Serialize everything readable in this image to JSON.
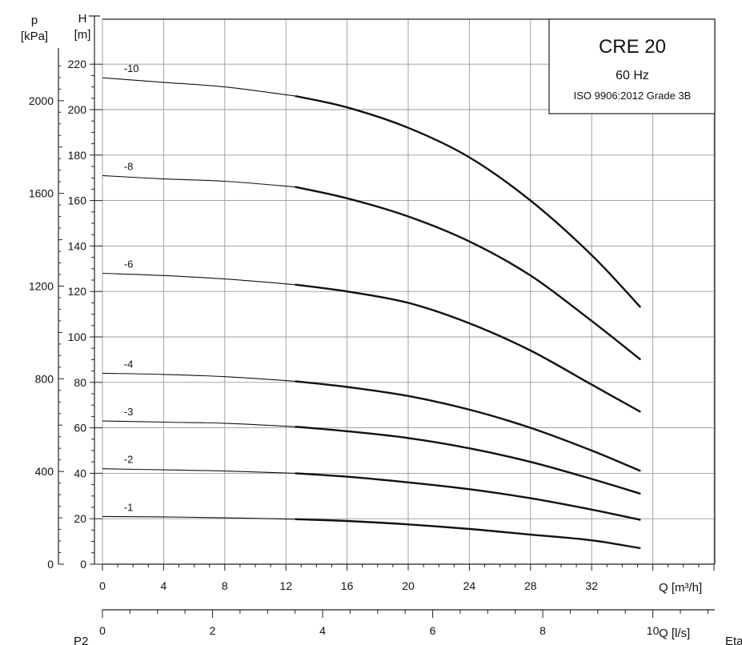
{
  "chart_data": {
    "type": "line",
    "title": "CRE 20",
    "subtitle": "60 Hz",
    "annotation": "ISO 9906:2012 Grade 3B",
    "xlabel": "Q [m³/h]",
    "x2label": "Q [l/s]",
    "ylabel": "H\n[m]",
    "y2label": "p\n[kPa]",
    "xlim": [
      0,
      40
    ],
    "ylim": [
      0,
      220
    ],
    "x_ticks": [
      0,
      4,
      8,
      12,
      16,
      20,
      24,
      28,
      32
    ],
    "y_ticks": [
      0,
      20,
      40,
      60,
      80,
      100,
      120,
      140,
      160,
      180,
      200,
      220
    ],
    "x2_ticks": [
      0,
      2,
      4,
      6,
      8,
      10
    ],
    "y2_ticks": [
      0,
      400,
      800,
      1200,
      1600,
      2000
    ],
    "grid": true,
    "series": [
      {
        "name": "-10",
        "x": [
          0,
          4,
          8,
          12.6,
          16,
          20,
          24,
          28,
          32,
          35.2
        ],
        "values": [
          214,
          212,
          210,
          206,
          201,
          192,
          179,
          160,
          136,
          113
        ]
      },
      {
        "name": "-8",
        "x": [
          0,
          4,
          8,
          12.6,
          16,
          20,
          24,
          28,
          32,
          35.2
        ],
        "values": [
          171,
          169.5,
          168.5,
          166,
          161,
          153,
          142,
          127,
          107,
          90
        ]
      },
      {
        "name": "-6",
        "x": [
          0,
          4,
          8,
          12.6,
          16,
          20,
          24,
          28,
          32,
          35.2
        ],
        "values": [
          128,
          127,
          125.5,
          123,
          120,
          115,
          106,
          94,
          79,
          67
        ]
      },
      {
        "name": "-4",
        "x": [
          0,
          4,
          8,
          12.6,
          16,
          20,
          24,
          28,
          32,
          35.2
        ],
        "values": [
          84,
          83.5,
          82.5,
          80.5,
          78,
          74,
          68,
          60,
          50,
          41
        ]
      },
      {
        "name": "-3",
        "x": [
          0,
          4,
          8,
          12.6,
          16,
          20,
          24,
          28,
          32,
          35.2
        ],
        "values": [
          63,
          62.5,
          62,
          60.5,
          58.5,
          55.5,
          51,
          45,
          37.5,
          31
        ]
      },
      {
        "name": "-2",
        "x": [
          0,
          4,
          8,
          12.6,
          16,
          20,
          24,
          28,
          32,
          35.2
        ],
        "values": [
          42,
          41.5,
          41,
          40,
          38.5,
          36,
          33,
          29,
          24,
          19.5
        ]
      },
      {
        "name": "-1",
        "x": [
          0,
          4,
          8,
          12.6,
          16,
          20,
          24,
          28,
          32,
          35.2
        ],
        "values": [
          21,
          20.8,
          20.4,
          19.8,
          19,
          17.5,
          15.5,
          13,
          10.5,
          7
        ]
      }
    ],
    "bold_from_x": 12.6,
    "footer_labels": [
      "P2",
      "Eta"
    ]
  }
}
